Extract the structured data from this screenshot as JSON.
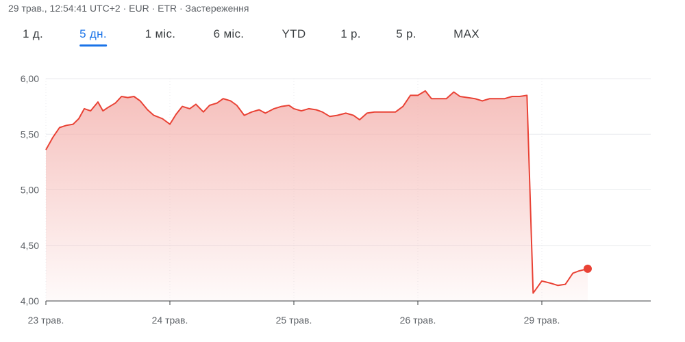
{
  "header": {
    "text": "29 трав., 12:54:41 UTC+2 · EUR · ETR · Застереження"
  },
  "tabs": [
    {
      "label": "1 д.",
      "active": false
    },
    {
      "label": "5 дн.",
      "active": true
    },
    {
      "label": "1 міс.",
      "active": false
    },
    {
      "label": "6 міс.",
      "active": false
    },
    {
      "label": "YTD",
      "active": false
    },
    {
      "label": "1 р.",
      "active": false
    },
    {
      "label": "5 р.",
      "active": false
    },
    {
      "label": "MAX",
      "active": false
    }
  ],
  "colors": {
    "line": "#e94235",
    "fill": "#f4b4b0",
    "grid": "#e8eaed",
    "axis": "#3c4043",
    "text": "#5f6368",
    "accent": "#1a73e8"
  },
  "chart_data": {
    "type": "line",
    "ylim": [
      4.0,
      6.0
    ],
    "yticks": [
      4.0,
      4.5,
      5.0,
      5.5,
      6.0
    ],
    "ytick_labels": [
      "4,00",
      "4,50",
      "5,00",
      "5,50",
      "6,00"
    ],
    "xticks": [
      0,
      1,
      2,
      3,
      4
    ],
    "xtick_labels": [
      "23 трав.",
      "24 трав.",
      "25 трав.",
      "26 трав.",
      "29 трав."
    ],
    "xlim": [
      0,
      4.86
    ],
    "grid": true,
    "series": [
      {
        "x": [
          0,
          0.055,
          0.11,
          0.165,
          0.22,
          0.265,
          0.31,
          0.36,
          0.42,
          0.46,
          0.5,
          0.56,
          0.61,
          0.66,
          0.71,
          0.76,
          0.82,
          0.87,
          0.94,
          1.0,
          1.05,
          1.1,
          1.16,
          1.21,
          1.27,
          1.32,
          1.38,
          1.43,
          1.49,
          1.54,
          1.6,
          1.66,
          1.72,
          1.77,
          1.84,
          1.9,
          1.96,
          2.0,
          2.06,
          2.12,
          2.18,
          2.23,
          2.29,
          2.35,
          2.42,
          2.48,
          2.53,
          2.59,
          2.65,
          2.7,
          2.76,
          2.82,
          2.88,
          2.94,
          3.0,
          3.06,
          3.11,
          3.17,
          3.23,
          3.29,
          3.34,
          3.4,
          3.46,
          3.52,
          3.58,
          3.65,
          3.7,
          3.76,
          3.82,
          3.88,
          3.93,
          4.0,
          4.07,
          4.13,
          4.19,
          4.25,
          4.3,
          4.37
        ],
        "y": [
          5.36,
          5.47,
          5.56,
          5.58,
          5.59,
          5.64,
          5.73,
          5.71,
          5.79,
          5.71,
          5.74,
          5.78,
          5.84,
          5.83,
          5.84,
          5.8,
          5.72,
          5.67,
          5.64,
          5.59,
          5.68,
          5.75,
          5.73,
          5.77,
          5.7,
          5.76,
          5.78,
          5.82,
          5.8,
          5.76,
          5.67,
          5.7,
          5.72,
          5.69,
          5.73,
          5.75,
          5.76,
          5.73,
          5.71,
          5.73,
          5.72,
          5.7,
          5.66,
          5.67,
          5.69,
          5.67,
          5.63,
          5.69,
          5.7,
          5.7,
          5.7,
          5.7,
          5.75,
          5.85,
          5.85,
          5.89,
          5.82,
          5.82,
          5.82,
          5.88,
          5.84,
          5.83,
          5.82,
          5.8,
          5.82,
          5.82,
          5.82,
          5.84,
          5.84,
          5.85,
          4.07,
          4.18,
          4.16,
          4.14,
          4.15,
          4.25,
          4.27,
          4.29
        ]
      }
    ]
  }
}
